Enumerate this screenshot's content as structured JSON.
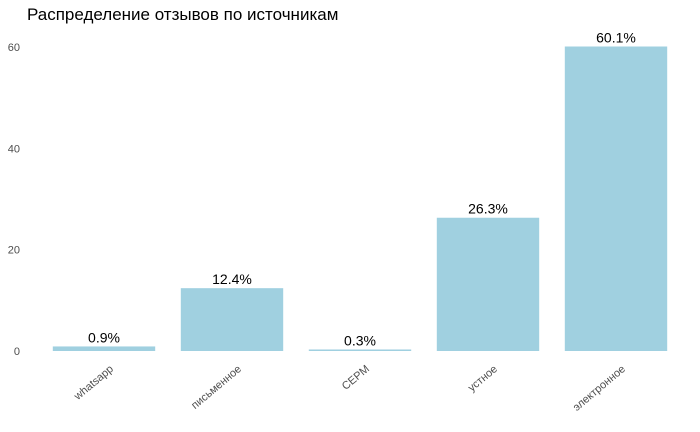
{
  "chart_data": {
    "type": "bar",
    "title": "Распределение отзывов по источникам",
    "xlabel": "",
    "ylabel": "",
    "categories": [
      "whatsapp",
      "письменное",
      "CEPM",
      "устное",
      "электронное"
    ],
    "values": [
      0.9,
      12.4,
      0.3,
      26.3,
      60.1
    ],
    "data_labels": [
      "0.9%",
      "12.4%",
      "0.3%",
      "26.3%",
      "60.1%"
    ],
    "ylim": [
      0,
      62
    ],
    "yticks": [
      0,
      20,
      40,
      60
    ],
    "bar_color": "#a0d0e0",
    "grid": false,
    "legend": false
  }
}
